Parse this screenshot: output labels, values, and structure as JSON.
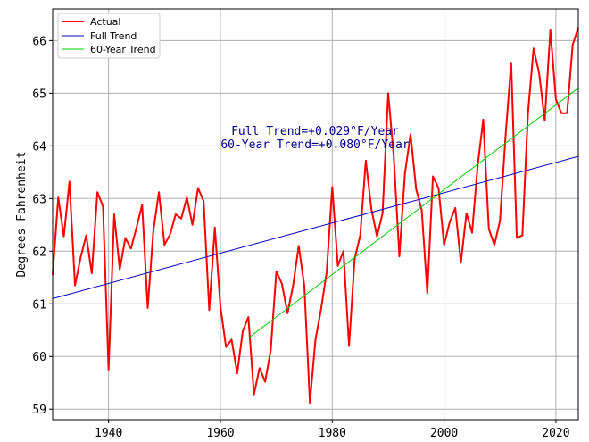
{
  "chart_data": {
    "type": "line",
    "title": "",
    "xlabel": "",
    "ylabel": "Degrees Fahrenheit",
    "xlim": [
      1930,
      2024
    ],
    "ylim": [
      58.8,
      66.6
    ],
    "xticks": [
      1940,
      1960,
      1980,
      2000,
      2020
    ],
    "yticks": [
      59,
      60,
      61,
      62,
      63,
      64,
      65,
      66
    ],
    "grid": true,
    "legend_position": "top-left",
    "annotations": {
      "full_trend": "Full Trend=+0.029°F/Year",
      "sixty_year_trend": "60-Year Trend=+0.080°F/Year"
    },
    "series": [
      {
        "name": "Actual",
        "color": "#ff0000",
        "x": [
          1930,
          1931,
          1932,
          1933,
          1934,
          1935,
          1936,
          1937,
          1938,
          1939,
          1940,
          1941,
          1942,
          1943,
          1944,
          1945,
          1946,
          1947,
          1948,
          1949,
          1950,
          1951,
          1952,
          1953,
          1954,
          1955,
          1956,
          1957,
          1958,
          1959,
          1960,
          1961,
          1962,
          1963,
          1964,
          1965,
          1966,
          1967,
          1968,
          1969,
          1970,
          1971,
          1972,
          1973,
          1974,
          1975,
          1976,
          1977,
          1978,
          1979,
          1980,
          1981,
          1982,
          1983,
          1984,
          1985,
          1986,
          1987,
          1988,
          1989,
          1990,
          1991,
          1992,
          1993,
          1994,
          1995,
          1996,
          1997,
          1998,
          1999,
          2000,
          2001,
          2002,
          2003,
          2004,
          2005,
          2006,
          2007,
          2008,
          2009,
          2010,
          2011,
          2012,
          2013,
          2014,
          2015,
          2016,
          2017,
          2018,
          2019,
          2020,
          2021,
          2022,
          2023,
          2024
        ],
        "y": [
          61.55,
          63.02,
          62.28,
          63.32,
          61.35,
          61.88,
          62.3,
          61.58,
          63.12,
          62.85,
          59.75,
          62.7,
          61.65,
          62.25,
          62.05,
          62.45,
          62.88,
          60.92,
          62.38,
          63.12,
          62.12,
          62.32,
          62.7,
          62.62,
          63.02,
          62.5,
          63.2,
          62.95,
          60.88,
          62.45,
          60.95,
          60.18,
          60.32,
          59.68,
          60.48,
          60.75,
          59.28,
          59.78,
          59.52,
          60.12,
          61.62,
          61.38,
          60.82,
          61.35,
          62.1,
          61.35,
          59.12,
          60.32,
          60.9,
          61.6,
          63.22,
          61.72,
          62.0,
          60.2,
          61.85,
          62.3,
          63.72,
          62.8,
          62.28,
          62.72,
          65.0,
          63.8,
          61.9,
          63.48,
          64.22,
          63.18,
          62.78,
          61.2,
          63.42,
          63.2,
          62.12,
          62.55,
          62.82,
          61.78,
          62.72,
          62.35,
          63.62,
          64.5,
          62.42,
          62.12,
          62.58,
          64.2,
          65.58,
          62.25,
          62.3,
          64.62,
          65.85,
          65.38,
          64.48,
          66.2,
          64.88,
          64.62,
          64.62,
          65.92,
          66.25
        ]
      },
      {
        "name": "Full Trend",
        "color": "#0000cc",
        "x": [
          1930,
          2024
        ],
        "y": [
          61.1,
          63.8
        ]
      },
      {
        "name": "60-Year Trend",
        "color": "#00cc00",
        "x": [
          1965,
          2024
        ],
        "y": [
          60.35,
          65.1
        ]
      }
    ]
  }
}
